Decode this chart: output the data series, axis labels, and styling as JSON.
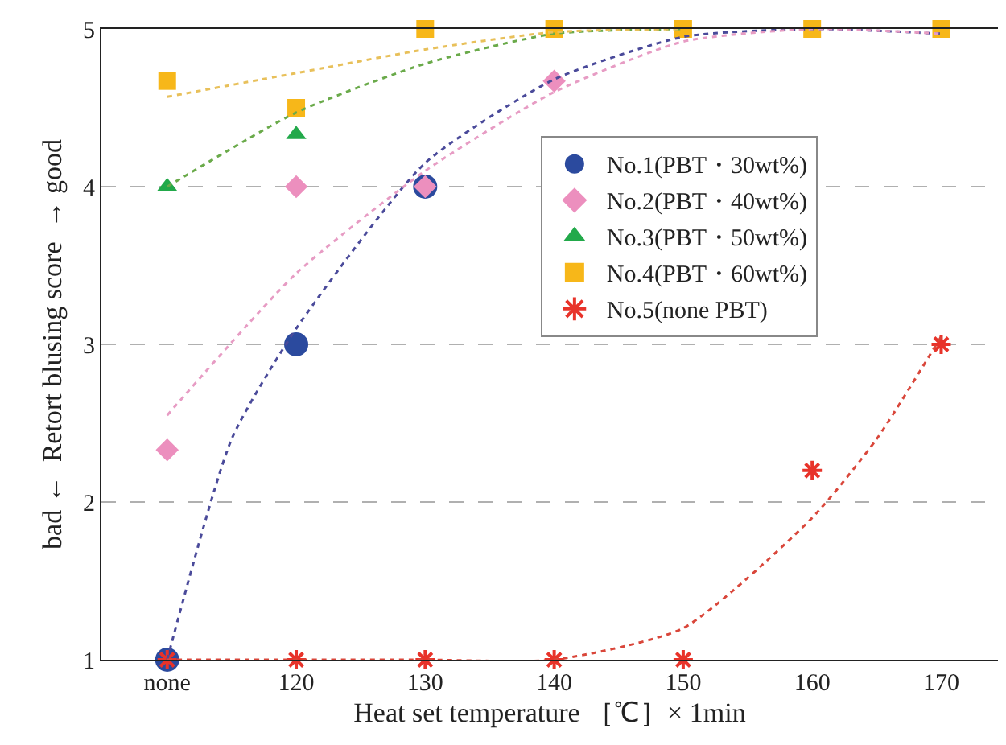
{
  "chart_data": {
    "type": "scatter",
    "xlabel": "Heat set temperature ［℃］× 1min",
    "ylabel": "bad ←  Retort blusing score  → good",
    "x": [
      110,
      120,
      130,
      140,
      150,
      160,
      170
    ],
    "xlim": [
      104.9,
      174.4
    ],
    "xticks": [
      {
        "value": 110,
        "label": "none"
      },
      120,
      130,
      140,
      150,
      160,
      170
    ],
    "ylim": [
      1,
      5
    ],
    "yticks": [
      1,
      2,
      3,
      4,
      5
    ],
    "grid": "y",
    "legend": "right",
    "series": [
      {
        "name": "No.1(PBT・30wt%)",
        "color": "#2b4a9e",
        "marker": "circle",
        "values": [
          1,
          3,
          4,
          null,
          null,
          null,
          null
        ]
      },
      {
        "name": "No.2(PBT・40wt%)",
        "color": "#ec8fbe",
        "marker": "diamond",
        "values": [
          2.33,
          4,
          4,
          4.67,
          null,
          null,
          null
        ]
      },
      {
        "name": "No.3(PBT・50wt%)",
        "color": "#22a94a",
        "marker": "triangle",
        "values": [
          4,
          4.33,
          null,
          null,
          null,
          null,
          null
        ]
      },
      {
        "name": "No.4(PBT・60wt%)",
        "color": "#f7b719",
        "marker": "square",
        "values": [
          4.67,
          4.5,
          5,
          5,
          5,
          5,
          5
        ]
      },
      {
        "name": "No.5(none PBT)",
        "color": "#e8332a",
        "marker": "cross",
        "values": [
          1,
          1,
          1,
          1,
          1,
          2.2,
          3
        ]
      },
      {
        "type": "line",
        "color": "#4a4a9a",
        "marker": "none",
        "line_style": "dotted",
        "x": [
          110,
          115,
          120,
          130,
          140,
          150,
          160,
          170
        ],
        "values": [
          1,
          2.4,
          3.1,
          4.15,
          4.68,
          4.95,
          5,
          4.97
        ]
      },
      {
        "type": "line",
        "color": "#e79cc4",
        "marker": "none",
        "line_style": "dotted",
        "x": [
          110,
          120,
          130,
          140,
          150,
          160,
          170
        ],
        "values": [
          2.55,
          3.45,
          4.1,
          4.6,
          4.92,
          5,
          4.97
        ]
      },
      {
        "type": "line",
        "color": "#6aaa4a",
        "marker": "none",
        "line_style": "dotted",
        "x": [
          110,
          120,
          130,
          140,
          150
        ],
        "values": [
          4,
          4.47,
          4.78,
          4.97,
          5
        ]
      },
      {
        "type": "line",
        "color": "#e8c05a",
        "marker": "none",
        "line_style": "dotted",
        "x": [
          110,
          120,
          130,
          140,
          150
        ],
        "values": [
          4.57,
          4.72,
          4.87,
          4.98,
          5
        ]
      },
      {
        "type": "line",
        "color": "#d9463a",
        "marker": "none",
        "line_style": "dotted",
        "x": [
          110,
          120,
          130,
          140,
          150,
          160,
          165,
          170
        ],
        "values": [
          1,
          1,
          1,
          1,
          1.2,
          1.9,
          2.4,
          3.05
        ]
      }
    ]
  }
}
